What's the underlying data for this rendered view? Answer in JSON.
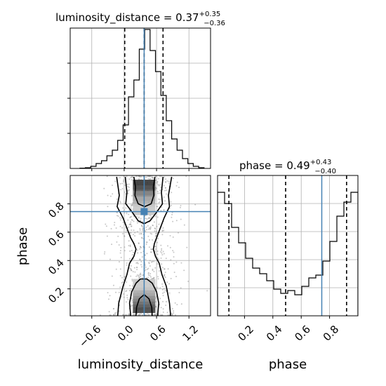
{
  "chart_data": {
    "type": "corner",
    "parameters": [
      "luminosity_distance",
      "phase"
    ],
    "truth": {
      "luminosity_distance": 0.37,
      "phase": 0.745,
      "color": "#4682b4"
    },
    "title_luminosity_distance": {
      "prefix": "luminosity_distance = 0.37",
      "plus": "+0.35",
      "minus": "−0.36"
    },
    "title_phase": {
      "prefix": "phase = 0.49",
      "plus": "+0.43",
      "minus": "−0.40"
    },
    "xlabel_luminosity_distance": "luminosity_distance",
    "xlabel_phase": "phase",
    "ylabel_phase": "phase",
    "luminosity_distance_xlim": [
      -1.0,
      1.6
    ],
    "phase_lim": [
      0.01,
      1.0
    ],
    "luminosity_distance_ticks": [
      "−0.6",
      "0.0",
      "0.6",
      "1.2"
    ],
    "phase_ticks": [
      "0.2",
      "0.4",
      "0.6",
      "0.8"
    ],
    "quantiles_luminosity_distance": [
      0.01,
      0.37,
      0.72
    ],
    "quantiles_phase": [
      0.09,
      0.49,
      0.92
    ],
    "hist_luminosity_distance": {
      "bin_edges": [
        -0.82,
        -0.72,
        -0.62,
        -0.52,
        -0.42,
        -0.32,
        -0.22,
        -0.12,
        -0.02,
        0.08,
        0.18,
        0.28,
        0.38,
        0.48,
        0.58,
        0.68,
        0.78,
        0.88,
        0.98,
        1.08,
        1.18,
        1.28,
        1.38,
        1.48
      ],
      "counts": [
        0.2,
        0.5,
        1.5,
        3.5,
        5.5,
        9,
        13,
        20,
        31,
        51,
        63,
        85,
        99,
        84,
        69,
        52,
        34,
        21,
        13,
        7,
        3.5,
        1.5,
        0.5
      ],
      "max": 100
    },
    "hist_phase": {
      "bin_edges": [
        0.01,
        0.0595,
        0.109,
        0.1585,
        0.208,
        0.2575,
        0.307,
        0.3565,
        0.406,
        0.4555,
        0.505,
        0.5545,
        0.604,
        0.6535,
        0.703,
        0.7525,
        0.802,
        0.8515,
        0.901,
        0.9505,
        1.0
      ],
      "counts": [
        88,
        80,
        63,
        52,
        41,
        34,
        30,
        25,
        19,
        16,
        18,
        15,
        21,
        27,
        29,
        39,
        53,
        71,
        81,
        88
      ],
      "max": 100
    },
    "contour_levels": [
      "0.5σ",
      "1σ",
      "1.5σ",
      "2σ"
    ]
  }
}
